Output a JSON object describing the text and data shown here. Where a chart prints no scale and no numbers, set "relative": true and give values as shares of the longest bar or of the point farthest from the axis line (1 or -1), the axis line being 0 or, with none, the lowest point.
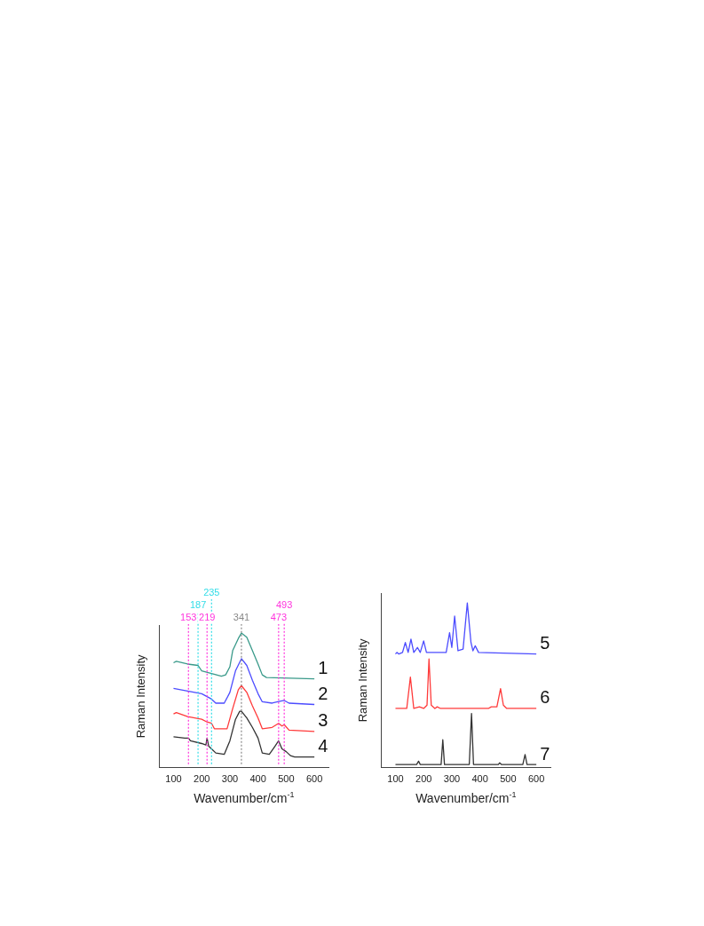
{
  "chart_data": [
    {
      "type": "line",
      "relative": true,
      "xlabel": "Wavenumber/cm$^{-1}$",
      "ylabel": "Raman Intensity",
      "xlim": [
        50,
        650
      ],
      "xticks": [
        100,
        200,
        300,
        400,
        500,
        600
      ],
      "tick_labels": "x",
      "grid": false,
      "legend": false,
      "marker": "none",
      "line_style": "solid",
      "series": [
        {
          "name": "1",
          "color": "#3a9a8a",
          "x": [
            100,
            110,
            150,
            187,
            200,
            235,
            270,
            285,
            300,
            310,
            330,
            341,
            360,
            380,
            400,
            415,
            430,
            600
          ],
          "values": [
            0.78,
            0.79,
            0.77,
            0.76,
            0.72,
            0.7,
            0.68,
            0.69,
            0.75,
            0.87,
            0.96,
            1.0,
            0.97,
            0.87,
            0.77,
            0.69,
            0.67,
            0.66
          ]
        },
        {
          "name": "2",
          "color": "#4c4cff",
          "x": [
            100,
            150,
            200,
            235,
            250,
            280,
            300,
            320,
            341,
            360,
            380,
            400,
            415,
            450,
            470,
            493,
            510,
            600
          ],
          "values": [
            0.59,
            0.57,
            0.55,
            0.51,
            0.48,
            0.48,
            0.56,
            0.72,
            0.81,
            0.76,
            0.65,
            0.55,
            0.49,
            0.48,
            0.49,
            0.5,
            0.48,
            0.47
          ]
        },
        {
          "name": "3",
          "color": "#ff3a3a",
          "x": [
            100,
            110,
            150,
            200,
            219,
            235,
            245,
            290,
            310,
            330,
            341,
            360,
            380,
            400,
            415,
            450,
            473,
            485,
            493,
            510,
            600
          ],
          "values": [
            0.4,
            0.41,
            0.38,
            0.36,
            0.34,
            0.33,
            0.29,
            0.29,
            0.44,
            0.58,
            0.61,
            0.56,
            0.46,
            0.37,
            0.29,
            0.3,
            0.33,
            0.31,
            0.32,
            0.28,
            0.27
          ]
        },
        {
          "name": "4",
          "color": "#333333",
          "x": [
            100,
            140,
            153,
            160,
            200,
            215,
            219,
            225,
            235,
            250,
            280,
            300,
            320,
            335,
            341,
            360,
            380,
            400,
            415,
            440,
            460,
            473,
            485,
            500,
            515,
            530,
            600
          ],
          "values": [
            0.23,
            0.22,
            0.22,
            0.2,
            0.18,
            0.17,
            0.22,
            0.16,
            0.14,
            0.11,
            0.1,
            0.2,
            0.36,
            0.42,
            0.42,
            0.37,
            0.3,
            0.22,
            0.11,
            0.1,
            0.16,
            0.2,
            0.14,
            0.12,
            0.09,
            0.08,
            0.08
          ]
        }
      ],
      "ref_lines": [
        {
          "axis": "x",
          "value": 153,
          "label": "153",
          "color": "#ff33dd",
          "line_style": "dotted"
        },
        {
          "axis": "x",
          "value": 187,
          "label": "187",
          "color": "#33dde8",
          "line_style": "dotted"
        },
        {
          "axis": "x",
          "value": 219,
          "label": "219",
          "color": "#ff33dd",
          "line_style": "dotted"
        },
        {
          "axis": "x",
          "value": 235,
          "label": "235",
          "color": "#33dde8",
          "line_style": "dotted"
        },
        {
          "axis": "x",
          "value": 341,
          "label": "341",
          "color": "#888888",
          "line_style": "dotted"
        },
        {
          "axis": "x",
          "value": 473,
          "label": "473",
          "color": "#ff33dd",
          "line_style": "dotted"
        },
        {
          "axis": "x",
          "value": 493,
          "label": "493",
          "color": "#ff33dd",
          "line_style": "dotted"
        }
      ]
    },
    {
      "type": "line",
      "relative": true,
      "xlabel": "Wavenumber/cm$^{-1}$",
      "ylabel": "Raman Intensity",
      "xlim": [
        50,
        650
      ],
      "xticks": [
        100,
        200,
        300,
        400,
        500,
        600
      ],
      "tick_labels": "x",
      "grid": false,
      "legend": false,
      "marker": "none",
      "line_style": "solid",
      "series": [
        {
          "name": "5",
          "color": "#4c4cff",
          "x": [
            100,
            105,
            112,
            125,
            135,
            145,
            155,
            165,
            178,
            188,
            200,
            210,
            280,
            292,
            300,
            310,
            322,
            340,
            355,
            368,
            375,
            383,
            395,
            600
          ],
          "values": [
            0.69,
            0.7,
            0.69,
            0.7,
            0.76,
            0.7,
            0.78,
            0.7,
            0.73,
            0.7,
            0.77,
            0.7,
            0.7,
            0.82,
            0.73,
            0.92,
            0.71,
            0.72,
            1.0,
            0.76,
            0.71,
            0.74,
            0.7,
            0.69
          ]
        },
        {
          "name": "6",
          "color": "#ff3a3a",
          "x": [
            100,
            140,
            153,
            165,
            185,
            200,
            212,
            219,
            227,
            240,
            248,
            260,
            430,
            440,
            460,
            473,
            483,
            495,
            600
          ],
          "values": [
            0.36,
            0.36,
            0.55,
            0.36,
            0.37,
            0.36,
            0.38,
            0.66,
            0.38,
            0.36,
            0.37,
            0.36,
            0.36,
            0.37,
            0.37,
            0.48,
            0.38,
            0.36,
            0.36
          ]
        },
        {
          "name": "7",
          "color": "#333333",
          "x": [
            100,
            175,
            182,
            188,
            262,
            268,
            274,
            362,
            370,
            377,
            465,
            470,
            476,
            552,
            560,
            567,
            600
          ],
          "values": [
            0.02,
            0.02,
            0.04,
            0.02,
            0.02,
            0.17,
            0.02,
            0.02,
            0.33,
            0.02,
            0.02,
            0.03,
            0.02,
            0.02,
            0.08,
            0.02,
            0.02
          ]
        }
      ]
    }
  ]
}
